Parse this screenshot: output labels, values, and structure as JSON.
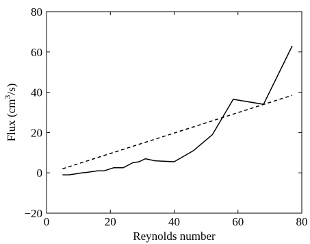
{
  "chart_data": {
    "type": "line",
    "title": "",
    "xlabel": "Reynolds number",
    "ylabel_parts": [
      "Flux (cm",
      "3",
      "/s)"
    ],
    "xlim": [
      0,
      80
    ],
    "ylim": [
      -20,
      80
    ],
    "xticks": [
      0,
      20,
      40,
      60,
      80
    ],
    "yticks": [
      -20,
      0,
      20,
      40,
      60,
      80
    ],
    "xtick_labels": [
      "0",
      "20",
      "40",
      "60",
      "80"
    ],
    "ytick_labels": [
      "−20",
      "0",
      "20",
      "40",
      "60",
      "80"
    ],
    "grid": false,
    "series": [
      {
        "style": "solid",
        "color": "#000000",
        "x": [
          5,
          7,
          9,
          11,
          13,
          16,
          18,
          21,
          24,
          27,
          29,
          31,
          34,
          40,
          46,
          52,
          58.5,
          68,
          77
        ],
        "y": [
          -1,
          -1,
          -0.5,
          0,
          0.3,
          1,
          1,
          2.5,
          2.5,
          5,
          5.5,
          7,
          6,
          5.5,
          11,
          19,
          36.5,
          34,
          63
        ]
      },
      {
        "style": "dashed",
        "color": "#000000",
        "x": [
          5,
          77
        ],
        "y": [
          2,
          38.5
        ]
      }
    ]
  }
}
